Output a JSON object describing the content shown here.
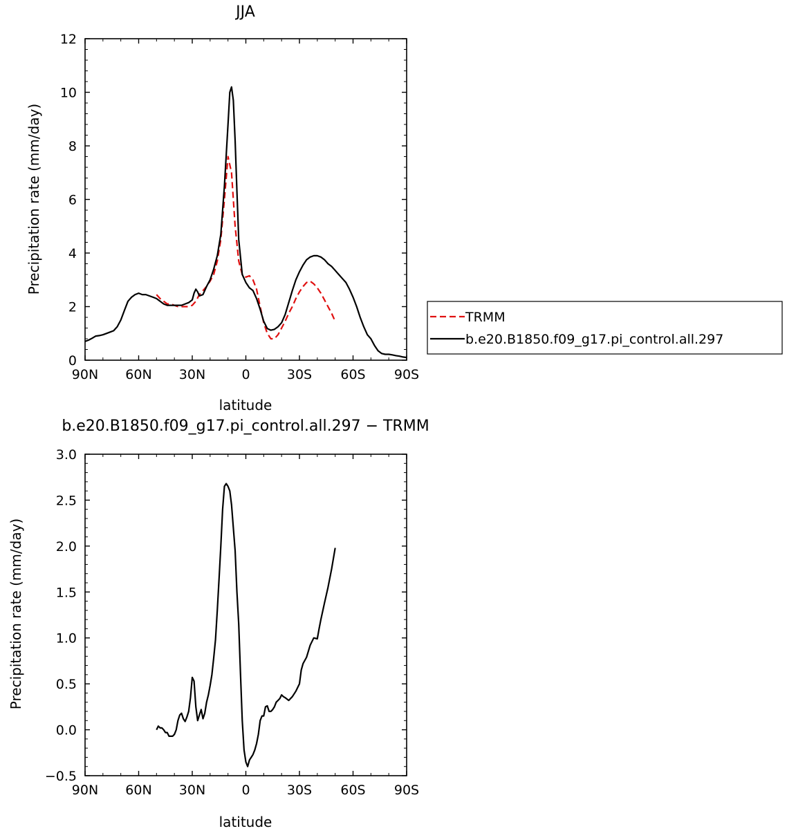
{
  "chart_data": [
    {
      "type": "line",
      "title": "JJA",
      "xlabel": "latitude",
      "ylabel": "Precipitation rate (mm/day)",
      "xlim": [
        90,
        -90
      ],
      "ylim": [
        0,
        12
      ],
      "x_tick_values": [
        90,
        60,
        30,
        0,
        -30,
        -60,
        -90
      ],
      "x_tick_labels": [
        "90N",
        "60N",
        "30N",
        "0",
        "30S",
        "60S",
        "90S"
      ],
      "y_tick_values": [
        0,
        2,
        4,
        6,
        8,
        10,
        12
      ],
      "y_tick_labels": [
        "0",
        "2",
        "4",
        "6",
        "8",
        "10",
        "12"
      ],
      "grid": false,
      "legend_position": "right",
      "series": [
        {
          "name": "TRMM",
          "color": "#e01010",
          "dash": "dashed",
          "x": [
            50,
            48,
            46,
            44,
            42,
            40,
            38,
            36,
            34,
            32,
            30,
            28,
            26,
            24,
            22,
            20,
            18,
            16,
            14,
            12,
            10,
            8,
            6,
            4,
            2,
            0,
            -2,
            -4,
            -6,
            -8,
            -10,
            -12,
            -14,
            -16,
            -18,
            -20,
            -22,
            -24,
            -26,
            -28,
            -30,
            -32,
            -34,
            -36,
            -38,
            -40,
            -42,
            -44,
            -46,
            -48,
            -50
          ],
          "y": [
            2.45,
            2.3,
            2.2,
            2.1,
            2.1,
            2.05,
            2.0,
            2.0,
            2.0,
            2.0,
            2.05,
            2.2,
            2.45,
            2.6,
            2.75,
            2.95,
            3.2,
            3.7,
            4.5,
            6.0,
            7.6,
            7.0,
            5.0,
            3.7,
            3.2,
            3.1,
            3.15,
            3.0,
            2.65,
            2.0,
            1.4,
            1.0,
            0.8,
            0.8,
            0.95,
            1.2,
            1.45,
            1.75,
            2.0,
            2.3,
            2.55,
            2.75,
            2.9,
            2.95,
            2.85,
            2.7,
            2.5,
            2.25,
            2.0,
            1.75,
            1.45
          ]
        },
        {
          "name": "b.e20.B1850.f09_g17.pi_control.all.297",
          "color": "#000000",
          "dash": "solid",
          "x": [
            90,
            88,
            86,
            84,
            82,
            80,
            78,
            76,
            74,
            72,
            70,
            68,
            66,
            64,
            62,
            60,
            58,
            56,
            54,
            52,
            50,
            48,
            46,
            44,
            42,
            40,
            38,
            36,
            34,
            32,
            30,
            29,
            28,
            27,
            26,
            24,
            22,
            20,
            18,
            16,
            14,
            12,
            10,
            9,
            8,
            7,
            6,
            5,
            4,
            2,
            0,
            -2,
            -4,
            -6,
            -8,
            -10,
            -12,
            -14,
            -16,
            -18,
            -20,
            -22,
            -24,
            -26,
            -28,
            -30,
            -32,
            -34,
            -36,
            -38,
            -40,
            -42,
            -44,
            -46,
            -48,
            -50,
            -52,
            -54,
            -56,
            -58,
            -60,
            -62,
            -64,
            -66,
            -68,
            -70,
            -72,
            -74,
            -76,
            -78,
            -80,
            -82,
            -84,
            -86,
            -88,
            -90
          ],
          "y": [
            0.7,
            0.75,
            0.82,
            0.9,
            0.92,
            0.95,
            1.0,
            1.05,
            1.1,
            1.25,
            1.5,
            1.85,
            2.2,
            2.35,
            2.45,
            2.5,
            2.45,
            2.45,
            2.4,
            2.35,
            2.3,
            2.2,
            2.1,
            2.05,
            2.05,
            2.05,
            2.05,
            2.05,
            2.1,
            2.15,
            2.25,
            2.5,
            2.65,
            2.55,
            2.4,
            2.45,
            2.75,
            3.0,
            3.4,
            3.9,
            4.7,
            6.5,
            8.8,
            10.0,
            10.2,
            9.7,
            8.2,
            6.3,
            4.5,
            3.2,
            2.9,
            2.7,
            2.6,
            2.3,
            1.9,
            1.45,
            1.18,
            1.12,
            1.15,
            1.25,
            1.4,
            1.7,
            2.15,
            2.6,
            3.0,
            3.3,
            3.55,
            3.75,
            3.85,
            3.9,
            3.9,
            3.85,
            3.75,
            3.6,
            3.5,
            3.35,
            3.2,
            3.05,
            2.9,
            2.65,
            2.35,
            2.0,
            1.6,
            1.25,
            0.95,
            0.8,
            0.55,
            0.35,
            0.25,
            0.22,
            0.22,
            0.2,
            0.17,
            0.15,
            0.12,
            0.1
          ]
        }
      ]
    },
    {
      "type": "line",
      "title": "b.e20.B1850.f09_g17.pi_control.all.297 − TRMM",
      "xlabel": "latitude",
      "ylabel": "Precipitation rate (mm/day)",
      "xlim": [
        90,
        -90
      ],
      "ylim": [
        -0.5,
        3.0
      ],
      "x_tick_values": [
        90,
        60,
        30,
        0,
        -30,
        -60,
        -90
      ],
      "x_tick_labels": [
        "90N",
        "60N",
        "30N",
        "0",
        "30S",
        "60S",
        "90S"
      ],
      "y_tick_values": [
        -0.5,
        0.0,
        0.5,
        1.0,
        1.5,
        2.0,
        2.5,
        3.0
      ],
      "y_tick_labels": [
        "−0.5",
        "0.0",
        "0.5",
        "1.0",
        "1.5",
        "2.0",
        "2.5",
        "3.0"
      ],
      "grid": false,
      "series": [
        {
          "color": "#000000",
          "dash": "solid",
          "x": [
            50,
            49,
            48,
            47,
            46,
            45,
            44,
            43,
            42,
            41,
            40,
            39,
            38,
            37,
            36,
            35,
            34,
            33,
            32,
            31,
            30,
            29,
            28,
            27,
            26,
            25,
            24,
            23,
            22,
            21,
            20,
            19,
            18,
            17,
            16,
            15,
            14,
            13,
            12,
            11,
            10,
            9,
            8,
            7,
            6,
            5,
            4,
            3,
            2,
            1,
            0,
            -1,
            -2,
            -3,
            -4,
            -5,
            -6,
            -7,
            -8,
            -9,
            -10,
            -11,
            -12,
            -13,
            -14,
            -15,
            -16,
            -17,
            -18,
            -19,
            -20,
            -21,
            -22,
            -24,
            -26,
            -28,
            -30,
            -31,
            -32,
            -34,
            -36,
            -38,
            -40,
            -41,
            -42,
            -44,
            -46,
            -48,
            -50
          ],
          "y": [
            0.0,
            0.04,
            0.02,
            0.02,
            0.0,
            -0.03,
            -0.03,
            -0.07,
            -0.07,
            -0.07,
            -0.05,
            0.0,
            0.1,
            0.16,
            0.18,
            0.12,
            0.09,
            0.14,
            0.2,
            0.35,
            0.57,
            0.53,
            0.25,
            0.1,
            0.16,
            0.22,
            0.12,
            0.18,
            0.3,
            0.38,
            0.48,
            0.6,
            0.78,
            0.98,
            1.3,
            1.65,
            2.0,
            2.4,
            2.65,
            2.68,
            2.65,
            2.6,
            2.45,
            2.2,
            1.95,
            1.5,
            1.15,
            0.6,
            0.1,
            -0.22,
            -0.35,
            -0.4,
            -0.33,
            -0.3,
            -0.27,
            -0.22,
            -0.15,
            -0.05,
            0.1,
            0.15,
            0.15,
            0.25,
            0.26,
            0.2,
            0.2,
            0.22,
            0.25,
            0.3,
            0.32,
            0.34,
            0.38,
            0.36,
            0.35,
            0.32,
            0.36,
            0.42,
            0.5,
            0.65,
            0.72,
            0.79,
            0.92,
            1.0,
            0.99,
            1.1,
            1.2,
            1.38,
            1.55,
            1.75,
            1.98
          ]
        }
      ]
    }
  ]
}
